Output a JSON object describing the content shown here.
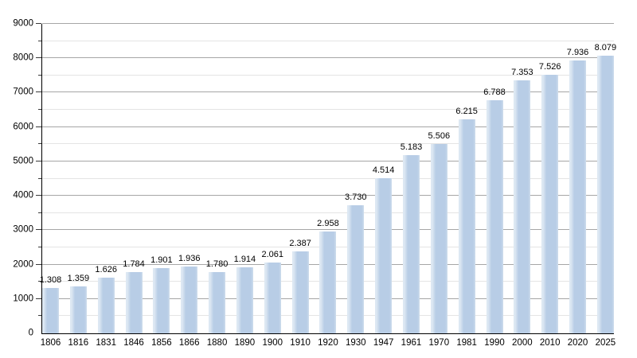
{
  "chart_data": {
    "type": "bar",
    "title": "",
    "xlabel": "",
    "ylabel": "",
    "categories": [
      "1806",
      "1816",
      "1831",
      "1846",
      "1856",
      "1866",
      "1880",
      "1890",
      "1900",
      "1910",
      "1920",
      "1930",
      "1947",
      "1961",
      "1970",
      "1981",
      "1990",
      "2000",
      "2010",
      "2020",
      "2025"
    ],
    "values": [
      1308,
      1359,
      1626,
      1784,
      1901,
      1936,
      1780,
      1914,
      2061,
      2387,
      2958,
      3730,
      4514,
      5183,
      5506,
      6215,
      6788,
      7353,
      7526,
      7936,
      8079
    ],
    "bar_labels": [
      "1.308",
      "1.359",
      "1.626",
      "1.784",
      "1.901",
      "1.936",
      "1.780",
      "1.914",
      "2.061",
      "2.387",
      "2.958",
      "3.730",
      "4.514",
      "5.183",
      "5.506",
      "6.215",
      "6.788",
      "7.353",
      "7.526",
      "7.936",
      "8.079"
    ],
    "ylim": [
      0,
      9000
    ],
    "y_major_tick_labels": [
      "0",
      "1000",
      "2000",
      "3000",
      "4000",
      "5000",
      "6000",
      "7000",
      "8000",
      "9000"
    ],
    "y_major_step": 1000,
    "y_minor_step": 500,
    "grid": "major-and-minor-horizontal",
    "legend": "none",
    "colors": {
      "bar_fill": "#b8cde6",
      "bar_edge_highlight": "#dde8f3",
      "grid_major": "#a6a6a6",
      "grid_minor": "#e4e4e4",
      "axis": "#000000",
      "text": "#000000",
      "background": "#ffffff"
    }
  }
}
